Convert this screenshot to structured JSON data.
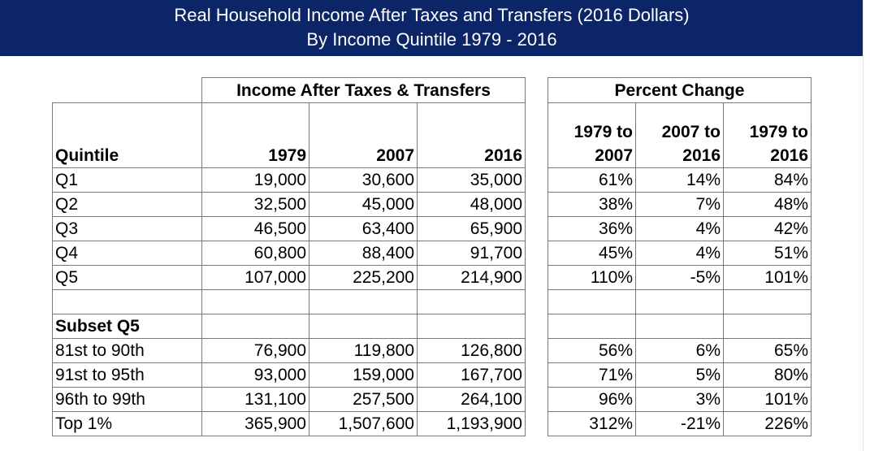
{
  "title": {
    "line1": "Real Household Income After Taxes and Transfers (2016 Dollars)",
    "line2": "By Income Quintile 1979 - 2016"
  },
  "left_header": "Income After Taxes & Transfers",
  "right_header": "Percent Change",
  "col_labels": {
    "quintile": "Quintile",
    "y1979": "1979",
    "y2007": "2007",
    "y2016": "2016",
    "p1_top": "1979 to",
    "p1_bot": "2007",
    "p2_top": "2007 to",
    "p2_bot": "2016",
    "p3_top": "1979 to",
    "p3_bot": "2016"
  },
  "quintile_rows": [
    {
      "label": "Q1",
      "y1979": "19,000",
      "y2007": "30,600",
      "y2016": "35,000",
      "p1": "61%",
      "p2": "14%",
      "p3": "84%"
    },
    {
      "label": "Q2",
      "y1979": "32,500",
      "y2007": "45,000",
      "y2016": "48,000",
      "p1": "38%",
      "p2": "7%",
      "p3": "48%"
    },
    {
      "label": "Q3",
      "y1979": "46,500",
      "y2007": "63,400",
      "y2016": "65,900",
      "p1": "36%",
      "p2": "4%",
      "p3": "42%"
    },
    {
      "label": "Q4",
      "y1979": "60,800",
      "y2007": "88,400",
      "y2016": "91,700",
      "p1": "45%",
      "p2": "4%",
      "p3": "51%"
    },
    {
      "label": "Q5",
      "y1979": "107,000",
      "y2007": "225,200",
      "y2016": "214,900",
      "p1": "110%",
      "p2": "-5%",
      "p3": "101%"
    }
  ],
  "subset_label": "Subset Q5",
  "subset_rows": [
    {
      "label": "81st to 90th",
      "y1979": "76,900",
      "y2007": "119,800",
      "y2016": "126,800",
      "p1": "56%",
      "p2": "6%",
      "p3": "65%"
    },
    {
      "label": "91st to 95th",
      "y1979": "93,000",
      "y2007": "159,000",
      "y2016": "167,700",
      "p1": "71%",
      "p2": "5%",
      "p3": "80%"
    },
    {
      "label": "96th to 99th",
      "y1979": "131,100",
      "y2007": "257,500",
      "y2016": "264,100",
      "p1": "96%",
      "p2": "3%",
      "p3": "101%"
    },
    {
      "label": "Top 1%",
      "y1979": "365,900",
      "y2007": "1,507,600",
      "y2016": "1,193,900",
      "p1": "312%",
      "p2": "-21%",
      "p3": "226%"
    }
  ],
  "colors": {
    "banner": "#0b2567",
    "banner_text": "#ffffff",
    "border": "#7a7a7a"
  }
}
